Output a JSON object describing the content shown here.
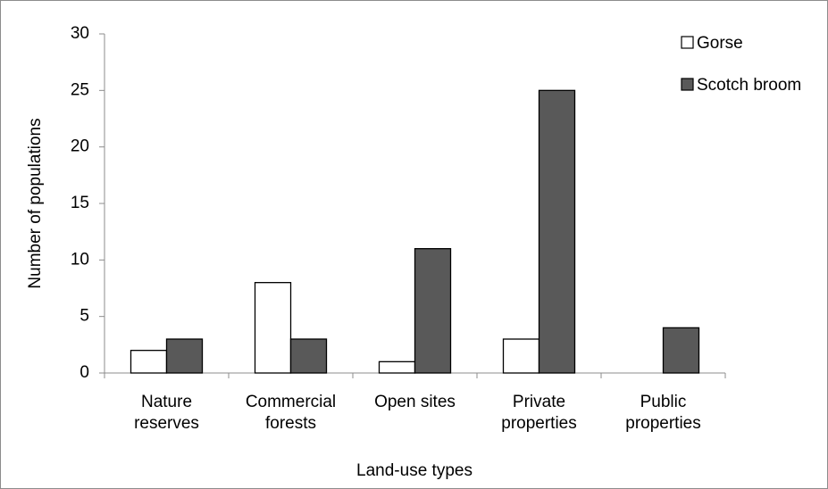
{
  "chart_data": {
    "type": "bar",
    "x_label": "Land-use types",
    "y_label": "Number of populations",
    "categories": [
      "Nature reserves",
      "Commercial forests",
      "Open sites",
      "Private properties",
      "Public properties"
    ],
    "series": [
      {
        "name": "Gorse",
        "color": "#ffffff",
        "values": [
          2,
          8,
          1,
          3,
          0
        ]
      },
      {
        "name": "Scotch broom",
        "color": "#595959",
        "values": [
          3,
          3,
          11,
          25,
          4
        ]
      }
    ],
    "ylim": [
      0,
      30
    ],
    "yticks": [
      0,
      5,
      10,
      15,
      20,
      25,
      30
    ],
    "grid": false,
    "legend": "top-right"
  }
}
